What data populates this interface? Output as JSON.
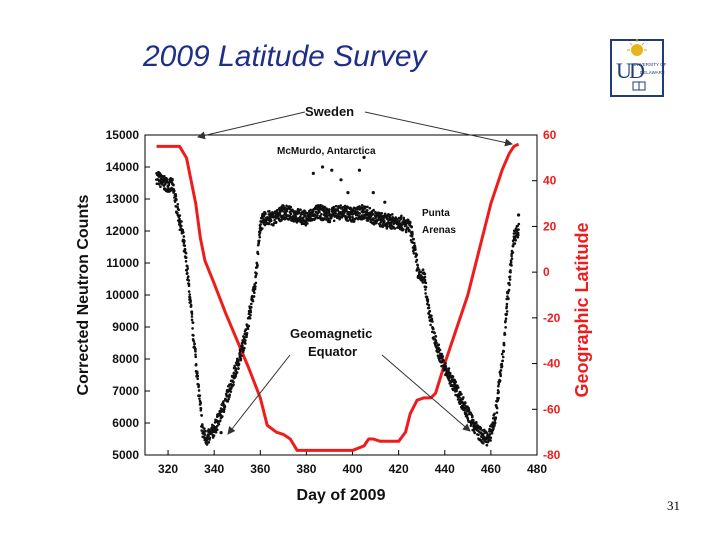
{
  "slide": {
    "title": "2009 Latitude Survey",
    "page_number": "31"
  },
  "logo": {
    "name": "university-of-delaware-logo",
    "text": "UNIVERSITY OF DELAWARE"
  },
  "colors": {
    "title": "#1f2f86",
    "counts": "#111111",
    "latitude": "#ee1c1c",
    "logo_blue": "#1f3b7a",
    "logo_gold": "#e6b51e"
  },
  "chart_data": {
    "type": "scatter",
    "xlabel": "Day of 2009",
    "ylabel": "Corrected Neutron Counts",
    "y2label": "Geographic Latitude",
    "xlim": [
      310,
      480
    ],
    "ylim": [
      5000,
      15000
    ],
    "y2lim": [
      -80,
      60
    ],
    "xticks": [
      "320",
      "340",
      "360",
      "380",
      "400",
      "420",
      "440",
      "460",
      "480"
    ],
    "yticks": [
      "5000",
      "6000",
      "7000",
      "8000",
      "9000",
      "10000",
      "11000",
      "12000",
      "13000",
      "14000",
      "15000"
    ],
    "y2ticks": [
      "60",
      "40",
      "20",
      "0",
      "-20",
      "-40",
      "-60",
      "-80"
    ],
    "grid": false,
    "annotations": {
      "sweden": "Sweden",
      "mcmurdo": "McMurdo, Antarctica",
      "punta1": "Punta",
      "punta2": "Arenas",
      "geo1": "Geomagnetic",
      "geo2": "Equator"
    },
    "series": [
      {
        "axis": "left",
        "color": "#111111",
        "x": [
          315,
          318,
          322,
          326,
          328,
          330,
          332,
          334,
          335,
          337,
          340,
          343,
          346,
          350,
          354,
          358,
          360,
          362,
          366,
          370,
          375,
          380,
          385,
          390,
          395,
          400,
          405,
          410,
          415,
          420,
          425,
          427,
          429,
          431,
          433,
          436,
          440,
          444,
          448,
          452,
          456,
          459,
          462,
          465,
          468,
          470,
          472
        ],
        "y": [
          13700,
          13500,
          13400,
          12000,
          11000,
          9500,
          8000,
          6500,
          5700,
          5500,
          5800,
          6300,
          6900,
          7800,
          8800,
          10500,
          12200,
          12400,
          12400,
          12600,
          12500,
          12400,
          12600,
          12500,
          12600,
          12500,
          12600,
          12400,
          12300,
          12300,
          12100,
          11400,
          10500,
          10600,
          9600,
          8500,
          7700,
          7200,
          6600,
          6000,
          5600,
          5500,
          6200,
          8000,
          10500,
          11800,
          12000
        ],
        "outliers": [
          [
            383,
            13800
          ],
          [
            387,
            14000
          ],
          [
            391,
            13900
          ],
          [
            395,
            13600
          ],
          [
            398,
            13200
          ],
          [
            403,
            13900
          ],
          [
            405,
            14300
          ],
          [
            409,
            13200
          ],
          [
            414,
            12900
          ],
          [
            325,
            12300
          ],
          [
            343,
            5700
          ],
          [
            472,
            12500
          ]
        ]
      },
      {
        "axis": "right",
        "color": "#ee1c1c",
        "x": [
          315,
          320,
          325,
          328,
          330,
          332,
          334,
          336,
          340,
          345,
          350,
          355,
          360,
          363,
          367,
          370,
          373,
          376,
          380,
          390,
          400,
          405,
          407,
          409,
          412,
          415,
          420,
          423,
          425,
          428,
          431,
          434,
          436,
          440,
          445,
          450,
          455,
          460,
          465,
          468,
          470,
          472
        ],
        "y": [
          55,
          55,
          55,
          50,
          40,
          30,
          15,
          5,
          -5,
          -18,
          -30,
          -42,
          -55,
          -67,
          -70,
          -71,
          -73,
          -78,
          -78,
          -78,
          -78,
          -76,
          -73,
          -73,
          -74,
          -74,
          -74,
          -70,
          -62,
          -56,
          -55,
          -55,
          -53,
          -40,
          -25,
          -10,
          10,
          30,
          45,
          52,
          55,
          56
        ]
      }
    ]
  }
}
